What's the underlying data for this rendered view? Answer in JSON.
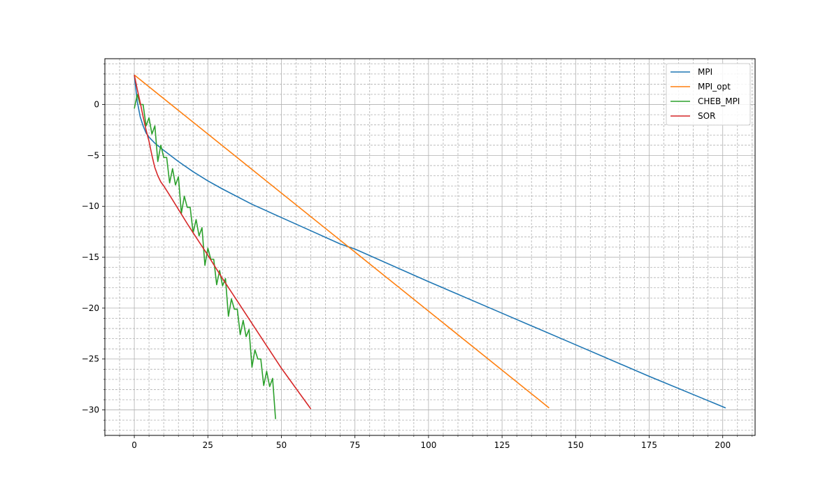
{
  "chart_data": {
    "type": "line",
    "title": "",
    "xlabel": "",
    "ylabel": "",
    "xlim": [
      -10,
      211
    ],
    "ylim": [
      -32.5,
      4.5
    ],
    "x_ticks": [
      0,
      25,
      50,
      75,
      100,
      125,
      150,
      175,
      200
    ],
    "y_ticks": [
      0,
      -5,
      -10,
      -15,
      -20,
      -25,
      -30
    ],
    "x_minor_step": 5,
    "y_minor_step": 1,
    "grid": {
      "major": true,
      "minor": true,
      "minor_style": "dashed"
    },
    "legend": {
      "placement": "top-right"
    },
    "series": [
      {
        "name": "MPI",
        "color": "#1f77b4",
        "points": [
          [
            0,
            2.9
          ],
          [
            1,
            0.3
          ],
          [
            2,
            -1.2
          ],
          [
            3,
            -2.1
          ],
          [
            4,
            -2.8
          ],
          [
            5,
            -3.2
          ],
          [
            7,
            -3.8
          ],
          [
            10,
            -4.5
          ],
          [
            15,
            -5.6
          ],
          [
            20,
            -6.6
          ],
          [
            25,
            -7.5
          ],
          [
            30,
            -8.3
          ],
          [
            40,
            -9.8
          ],
          [
            50,
            -11.1
          ],
          [
            60,
            -12.4
          ],
          [
            70,
            -13.7
          ],
          [
            75,
            -14.2
          ],
          [
            100,
            -17.4
          ],
          [
            125,
            -20.5
          ],
          [
            150,
            -23.6
          ],
          [
            175,
            -26.7
          ],
          [
            201,
            -29.8
          ]
        ]
      },
      {
        "name": "MPI_opt",
        "color": "#ff7f0e",
        "points": [
          [
            0,
            2.9
          ],
          [
            141,
            -29.8
          ]
        ]
      },
      {
        "name": "CHEB_MPI",
        "color": "#2ca02c",
        "points": [
          [
            0,
            -0.4
          ],
          [
            1,
            1.0
          ],
          [
            2,
            0.0
          ],
          [
            3,
            0.0
          ],
          [
            4,
            -2.1
          ],
          [
            5,
            -1.3
          ],
          [
            6,
            -2.9
          ],
          [
            7,
            -2.1
          ],
          [
            8,
            -5.6
          ],
          [
            9,
            -4.0
          ],
          [
            10,
            -5.2
          ],
          [
            11,
            -5.2
          ],
          [
            12,
            -7.7
          ],
          [
            13,
            -6.3
          ],
          [
            14,
            -7.9
          ],
          [
            15,
            -7.1
          ],
          [
            16,
            -10.7
          ],
          [
            17,
            -9.0
          ],
          [
            18,
            -10.1
          ],
          [
            19,
            -10.1
          ],
          [
            20,
            -12.6
          ],
          [
            21,
            -11.3
          ],
          [
            22,
            -12.9
          ],
          [
            23,
            -12.1
          ],
          [
            24,
            -15.8
          ],
          [
            25,
            -14.1
          ],
          [
            26,
            -15.2
          ],
          [
            27,
            -15.2
          ],
          [
            28,
            -17.7
          ],
          [
            29,
            -16.3
          ],
          [
            30,
            -17.8
          ],
          [
            31,
            -17.1
          ],
          [
            32,
            -20.8
          ],
          [
            33,
            -19.1
          ],
          [
            34,
            -20.1
          ],
          [
            35,
            -20.1
          ],
          [
            36,
            -22.6
          ],
          [
            37,
            -21.2
          ],
          [
            38,
            -22.8
          ],
          [
            39,
            -22.1
          ],
          [
            40,
            -25.8
          ],
          [
            41,
            -24.1
          ],
          [
            42,
            -25.0
          ],
          [
            43,
            -25.0
          ],
          [
            44,
            -27.6
          ],
          [
            45,
            -26.2
          ],
          [
            46,
            -27.7
          ],
          [
            47,
            -26.9
          ],
          [
            48,
            -30.9
          ]
        ]
      },
      {
        "name": "SOR",
        "color": "#d62728",
        "points": [
          [
            0,
            2.9
          ],
          [
            1,
            1.5
          ],
          [
            2,
            0.2
          ],
          [
            3,
            -1.2
          ],
          [
            4,
            -2.5
          ],
          [
            5,
            -3.6
          ],
          [
            6,
            -5.0
          ],
          [
            7,
            -6.2
          ],
          [
            8,
            -7.0
          ],
          [
            9,
            -7.6
          ],
          [
            10,
            -8.0
          ],
          [
            12,
            -8.9
          ],
          [
            15,
            -10.3
          ],
          [
            18,
            -11.7
          ],
          [
            20,
            -12.6
          ],
          [
            25,
            -14.8
          ],
          [
            30,
            -17.1
          ],
          [
            35,
            -19.3
          ],
          [
            40,
            -21.5
          ],
          [
            45,
            -23.7
          ],
          [
            50,
            -25.9
          ],
          [
            55,
            -27.9
          ],
          [
            60,
            -29.9
          ]
        ]
      }
    ]
  }
}
